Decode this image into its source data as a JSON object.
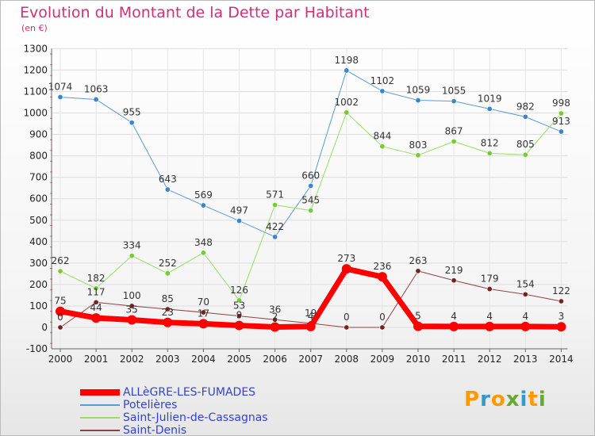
{
  "header": {
    "title": "Evolution du Montant de la Dette par Habitant",
    "unit": "(en €)"
  },
  "colors": {
    "title": "#cc3377",
    "legend_text": "#3344cc",
    "grid": "#dddddd"
  },
  "logo": {
    "letters": [
      "P",
      "r",
      "o",
      "x",
      "i",
      "t",
      "i"
    ],
    "colors": [
      "#ff9900",
      "#3399cc",
      "#ff9900",
      "#66aa33",
      "#3399cc",
      "#ff9900",
      "#66aa33"
    ]
  },
  "chart_data": {
    "type": "line",
    "title": "Evolution du Montant de la Dette par Habitant",
    "ylabel": "(en €)",
    "xlabel": "",
    "x": [
      "2000",
      "2001",
      "2002",
      "2003",
      "2004",
      "2005",
      "2006",
      "2007",
      "2008",
      "2009",
      "2010",
      "2011",
      "2012",
      "2013",
      "2014"
    ],
    "ylim": [
      -100,
      1300
    ],
    "yticks": [
      -100,
      0,
      100,
      200,
      300,
      400,
      500,
      600,
      700,
      800,
      900,
      1000,
      1100,
      1200,
      1300
    ],
    "grid": true,
    "legend": "bottom-left",
    "series": [
      {
        "name": "Potelières",
        "color": "#5b9bd5",
        "marker": "#3d85c6",
        "width": 1,
        "values": [
          1074,
          1063,
          955,
          643,
          569,
          497,
          422,
          660,
          1198,
          1102,
          1059,
          1055,
          1019,
          982,
          913
        ],
        "labels": [
          "1074",
          "1063",
          "955",
          "643",
          "569",
          "497",
          "422",
          "660",
          "1198",
          "1102",
          "1059",
          "1055",
          "1019",
          "982",
          "913"
        ]
      },
      {
        "name": "Saint-Julien-de-Cassagnas",
        "color": "#99dd66",
        "marker": "#77cc33",
        "width": 1,
        "values": [
          262,
          182,
          334,
          252,
          348,
          126,
          571,
          545,
          1002,
          844,
          803,
          867,
          812,
          805,
          998
        ],
        "labels": [
          "262",
          "182",
          "334",
          "252",
          "348",
          "126",
          "571",
          "545",
          "1002",
          "844",
          "803",
          "867",
          "812",
          "805",
          "998"
        ]
      },
      {
        "name": "Saint-Denis",
        "color": "#884444",
        "marker": "#772222",
        "width": 1,
        "values": [
          0,
          117,
          100,
          85,
          70,
          53,
          36,
          19,
          0,
          0,
          263,
          219,
          179,
          154,
          122
        ],
        "labels": [
          "0",
          "117",
          "100",
          "85",
          "70",
          "53",
          "36",
          "19",
          "0",
          "0",
          "263",
          "219",
          "179",
          "154",
          "122"
        ]
      },
      {
        "name": "ALLèGRE-LES-FUMADES",
        "color": "#ff0000",
        "marker": "#ff0000",
        "width": 7,
        "values": [
          75,
          44,
          35,
          23,
          17,
          9,
          2,
          4,
          273,
          236,
          5,
          4,
          4,
          4,
          3
        ],
        "labels": [
          "75",
          "44",
          "35",
          "23",
          "17",
          "9",
          "2",
          "4",
          "273",
          "236",
          "5",
          "4",
          "4",
          "4",
          "3"
        ]
      }
    ],
    "legend_entries": [
      {
        "name": "ALLèGRE-LES-FUMADES",
        "color": "#ff0000",
        "thick": true
      },
      {
        "name": "Potelières",
        "color": "#5b9bd5",
        "thick": false
      },
      {
        "name": "Saint-Julien-de-Cassagnas",
        "color": "#99dd66",
        "thick": false
      },
      {
        "name": "Saint-Denis",
        "color": "#884444",
        "thick": false
      }
    ]
  }
}
